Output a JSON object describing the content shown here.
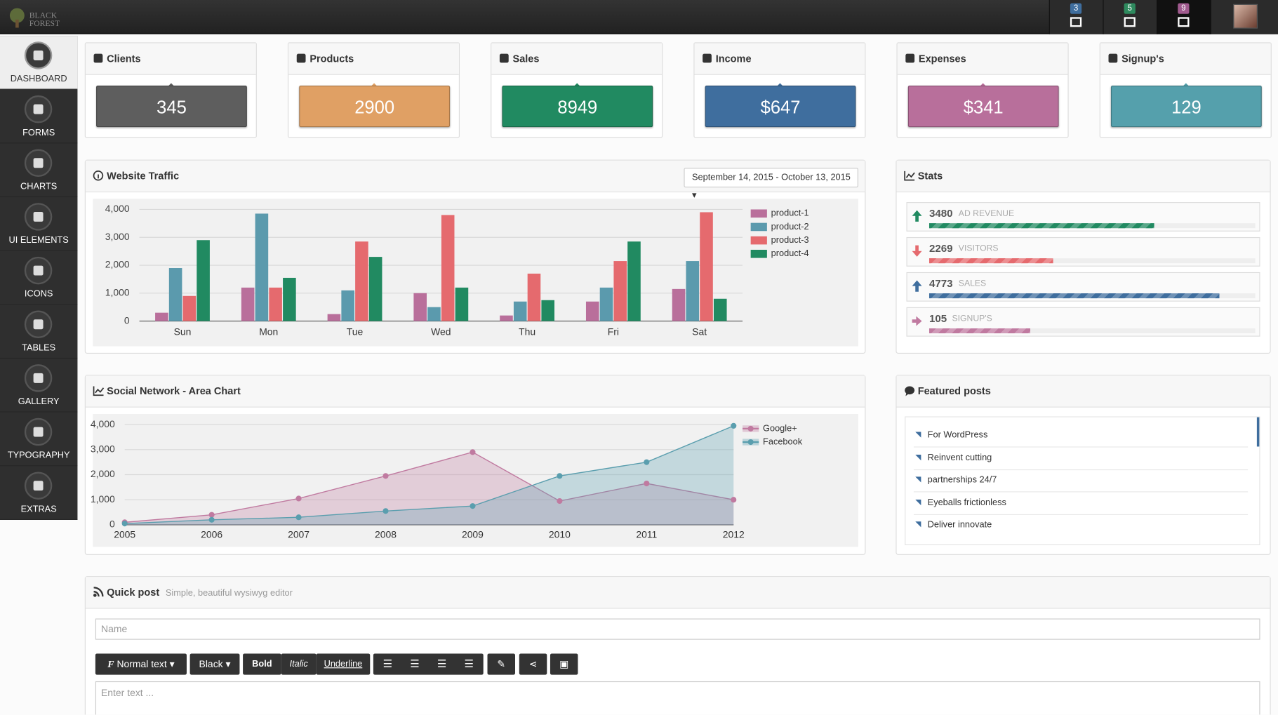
{
  "header": {
    "logo": [
      "BLACK",
      "FOREST"
    ],
    "badges": [
      {
        "value": "3",
        "color": "#3f6e9e"
      },
      {
        "value": "5",
        "color": "#2e8a5e"
      },
      {
        "value": "9",
        "color": "#a05a8e"
      }
    ]
  },
  "sidebar": [
    "DASHBOARD",
    "FORMS",
    "CHARTS",
    "UI ELEMENTS",
    "ICONS",
    "TABLES",
    "GALLERY",
    "TYPOGRAPHY",
    "EXTRAS"
  ],
  "cards": [
    {
      "title": "Clients",
      "value": "345",
      "color": "#5e5e5e"
    },
    {
      "title": "Products",
      "value": "2900",
      "color": "#e0a064"
    },
    {
      "title": "Sales",
      "value": "8949",
      "color": "#218a61"
    },
    {
      "title": "Income",
      "value": "$647",
      "color": "#3f6e9e"
    },
    {
      "title": "Expenses",
      "value": "$341",
      "color": "#b86f9b"
    },
    {
      "title": "Signup's",
      "value": "129",
      "color": "#55a0ac"
    }
  ],
  "traffic": {
    "date_range": "September 14, 2015 - October 13, 2015"
  },
  "chart_data": [
    {
      "type": "bar",
      "title": "Website Traffic",
      "categories": [
        "Sun",
        "Mon",
        "Tue",
        "Wed",
        "Thu",
        "Fri",
        "Sat"
      ],
      "series": [
        {
          "name": "product-1",
          "color": "#b96f9b",
          "values": [
            300,
            1200,
            250,
            1000,
            200,
            700,
            1150
          ]
        },
        {
          "name": "product-2",
          "color": "#5b9aad",
          "values": [
            1900,
            3850,
            1100,
            500,
            700,
            1200,
            2150
          ]
        },
        {
          "name": "product-3",
          "color": "#e56a6e",
          "values": [
            900,
            1200,
            2850,
            3800,
            1700,
            2150,
            3900
          ]
        },
        {
          "name": "product-4",
          "color": "#218a61",
          "values": [
            2900,
            1550,
            2300,
            1200,
            750,
            2850,
            800
          ]
        }
      ],
      "ylim": [
        0,
        4000
      ],
      "yticks": [
        0,
        {
          "value": 1000,
          "label": "1,000"
        },
        {
          "value": 2000,
          "label": "2,000"
        },
        {
          "value": 3000,
          "label": "3,000"
        },
        {
          "value": 4000,
          "label": "4,000"
        }
      ],
      "grid": true,
      "legend": "top-right"
    },
    {
      "type": "area",
      "title": "Social Network - Area Chart",
      "x": [
        2005,
        2006,
        2007,
        2008,
        2009,
        2010,
        2011,
        2012
      ],
      "series": [
        {
          "name": "Google+",
          "color": "#c07aa0",
          "values": [
            100,
            400,
            1050,
            1950,
            2900,
            950,
            1650,
            1000
          ]
        },
        {
          "name": "Facebook",
          "color": "#5a9eae",
          "values": [
            50,
            200,
            300,
            550,
            750,
            1950,
            2500,
            3950
          ]
        }
      ],
      "xlim": [
        2005,
        2012
      ],
      "xticks": [
        2005,
        2006,
        2007,
        2008,
        2009,
        2010,
        2011,
        2012
      ],
      "ylim": [
        0,
        4000
      ],
      "yticks": [
        0,
        {
          "value": 1000,
          "label": "1,000"
        },
        {
          "value": 2000,
          "label": "2,000"
        },
        {
          "value": 3000,
          "label": "3,000"
        },
        {
          "value": 4000,
          "label": "4,000"
        }
      ],
      "grid": true,
      "legend": "top-right"
    }
  ],
  "stats": {
    "title": "Stats",
    "items": [
      {
        "value": "3480",
        "label": "AD REVENUE",
        "progress": 69,
        "color": "#218a61",
        "direction": "up"
      },
      {
        "value": "2269",
        "label": "VISITORS",
        "progress": 38,
        "color": "#e56a6e",
        "direction": "down"
      },
      {
        "value": "4773",
        "label": "SALES",
        "progress": 89,
        "color": "#3f6e9e",
        "direction": "up"
      },
      {
        "value": "105",
        "label": "SIGNUP'S",
        "progress": 31,
        "color": "#c07aa0",
        "direction": "right"
      }
    ]
  },
  "posts": {
    "title": "Featured posts",
    "items": [
      "For WordPress",
      "Reinvent cutting",
      "partnerships 24/7",
      "Eyeballs frictionless",
      "Deliver innovate"
    ]
  },
  "quick_post": {
    "title": "Quick post",
    "subtitle": "Simple, beautiful wysiwyg editor",
    "name_placeholder": "Name",
    "text_placeholder": "Enter text ...",
    "toolbar": [
      "Normal text",
      "Black",
      "Bold",
      "Italic",
      "Underline"
    ]
  }
}
